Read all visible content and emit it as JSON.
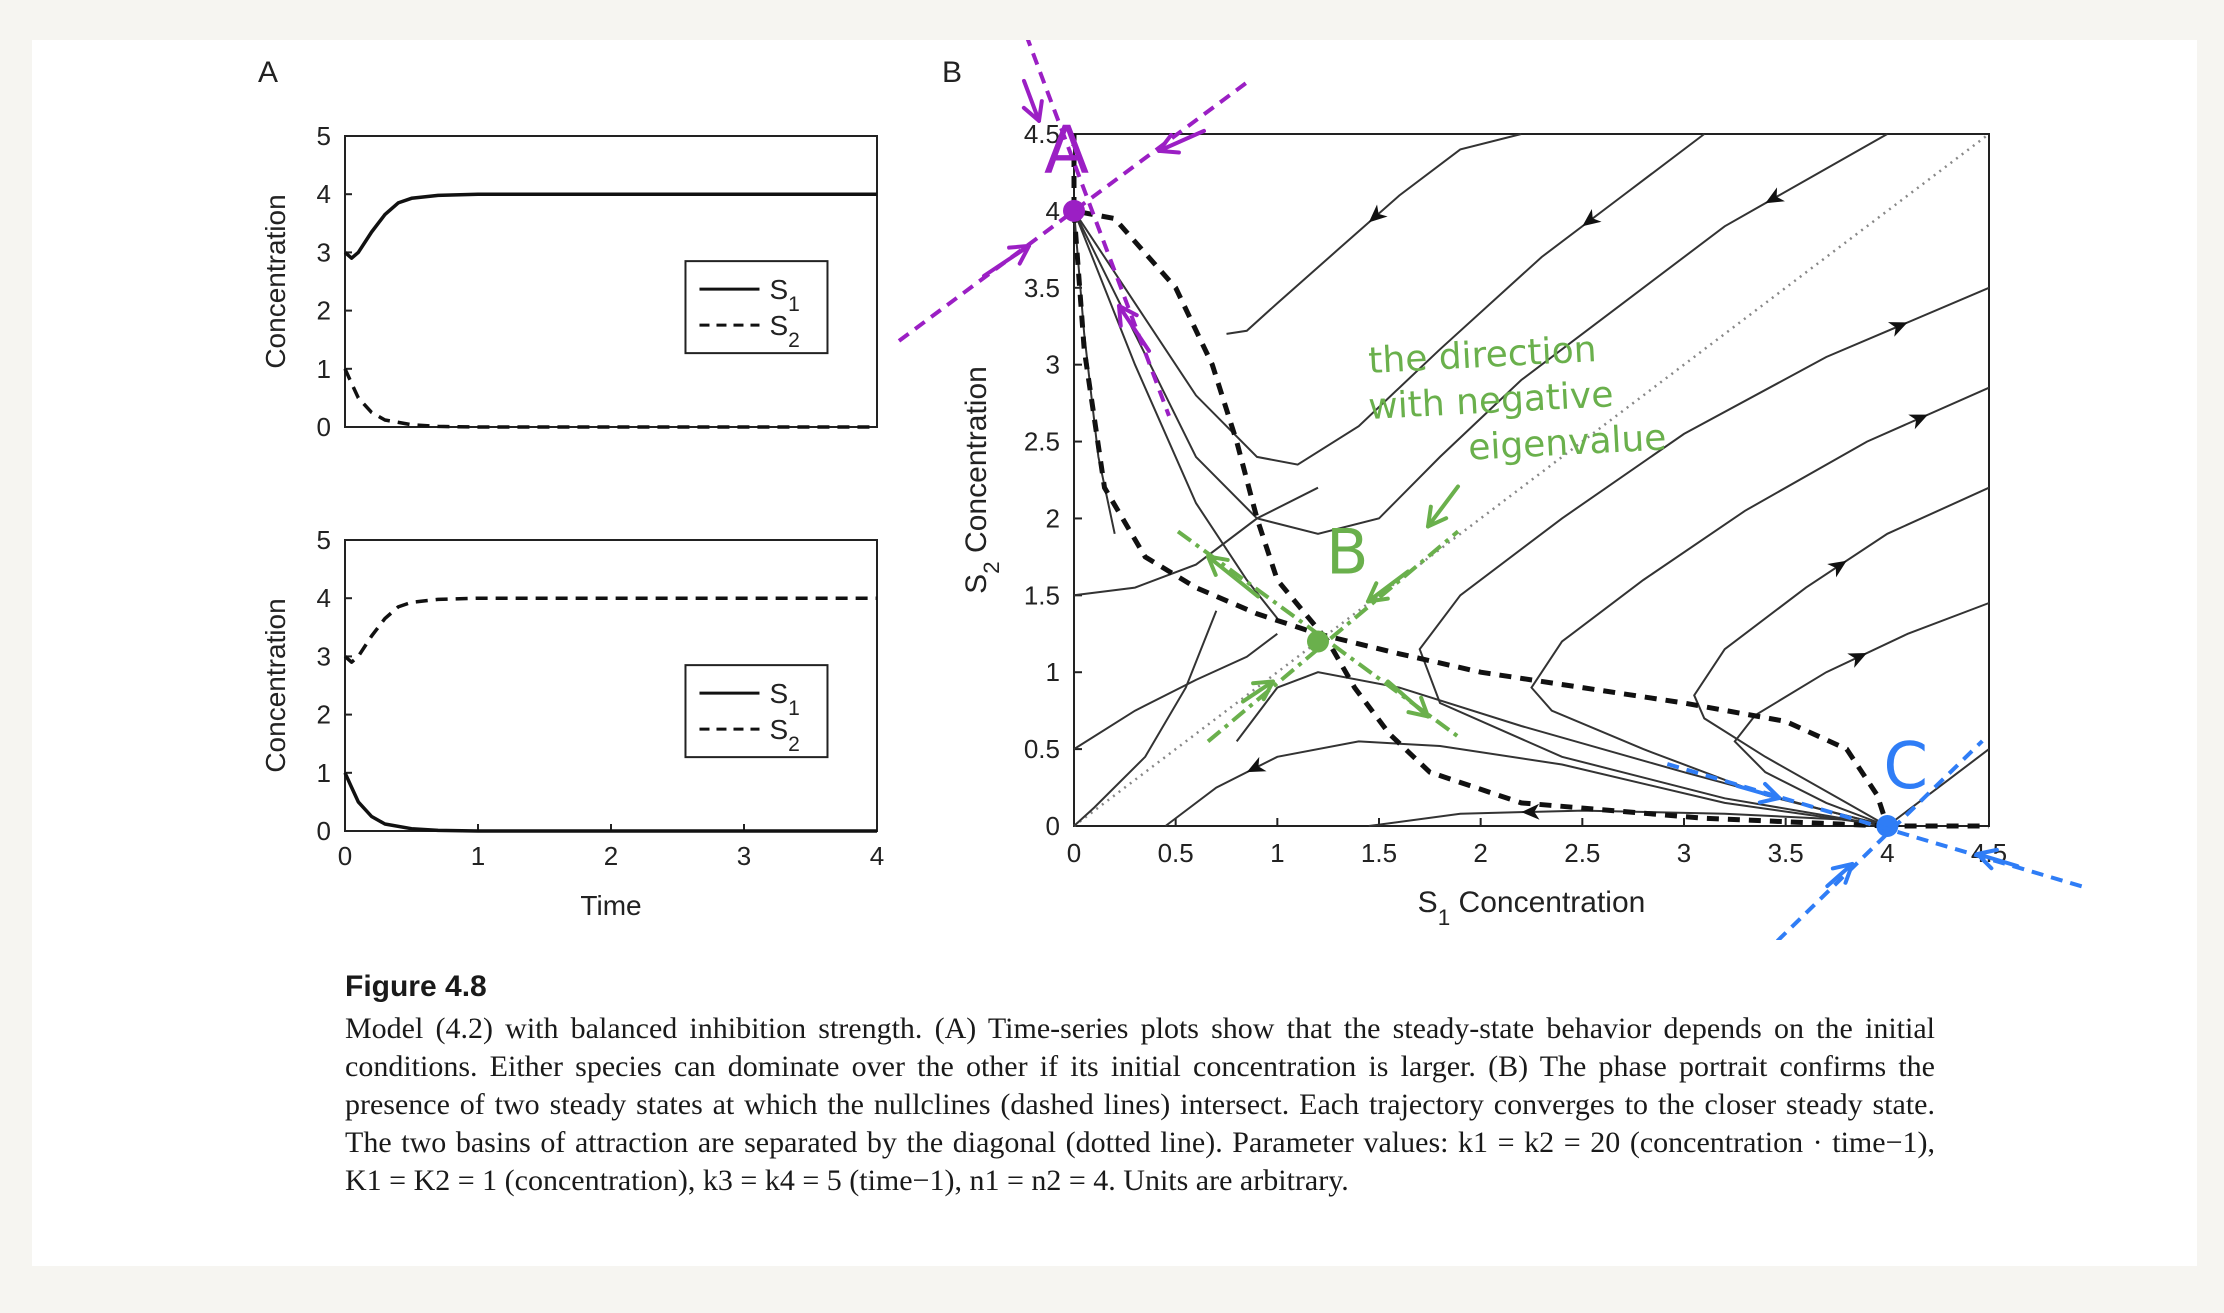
{
  "panel_a": {
    "label": "A",
    "chart_data": [
      {
        "type": "line",
        "ylabel": "Concentration",
        "xlabel": "",
        "xlim": [
          0,
          4
        ],
        "ylim": [
          0,
          5
        ],
        "yticks": [
          "0",
          "1",
          "2",
          "3",
          "4",
          "5"
        ],
        "legend": [
          "S1",
          "S2"
        ],
        "legend_placement": "center-right",
        "series": [
          {
            "name": "S1",
            "style": "solid",
            "x": [
              0,
              0.05,
              0.1,
              0.2,
              0.3,
              0.4,
              0.5,
              0.7,
              1.0,
              1.5,
              4
            ],
            "y": [
              3.0,
              2.9,
              3.0,
              3.35,
              3.65,
              3.85,
              3.93,
              3.98,
              4.0,
              4.0,
              4.0
            ]
          },
          {
            "name": "S2",
            "style": "dashed",
            "x": [
              0,
              0.05,
              0.1,
              0.2,
              0.3,
              0.5,
              0.7,
              1.0,
              4
            ],
            "y": [
              1.0,
              0.75,
              0.5,
              0.25,
              0.12,
              0.04,
              0.01,
              0.0,
              0.0
            ]
          }
        ]
      },
      {
        "type": "line",
        "ylabel": "Concentration",
        "xlabel": "Time",
        "xlim": [
          0,
          4
        ],
        "ylim": [
          0,
          5
        ],
        "xticks": [
          "0",
          "1",
          "2",
          "3",
          "4"
        ],
        "yticks": [
          "0",
          "1",
          "2",
          "3",
          "4",
          "5"
        ],
        "legend": [
          "S1",
          "S2"
        ],
        "legend_placement": "center-right",
        "series": [
          {
            "name": "S1",
            "style": "solid",
            "x": [
              0,
              0.05,
              0.1,
              0.2,
              0.3,
              0.5,
              0.7,
              1.0,
              4
            ],
            "y": [
              1.0,
              0.75,
              0.5,
              0.25,
              0.12,
              0.04,
              0.01,
              0.0,
              0.0
            ]
          },
          {
            "name": "S2",
            "style": "dashed",
            "x": [
              0,
              0.05,
              0.1,
              0.2,
              0.3,
              0.4,
              0.5,
              0.7,
              1.0,
              1.5,
              4
            ],
            "y": [
              3.0,
              2.9,
              3.0,
              3.35,
              3.65,
              3.85,
              3.93,
              3.98,
              4.0,
              4.0,
              4.0
            ]
          }
        ]
      }
    ]
  },
  "panel_b": {
    "label": "B",
    "chart_data": {
      "type": "line",
      "xlabel": "S1 Concentration",
      "ylabel": "S2 Concentration",
      "xlim": [
        0,
        4.5
      ],
      "ylim": [
        0,
        4.5
      ],
      "xticks": [
        "0",
        "0.5",
        "1",
        "1.5",
        "2",
        "2.5",
        "3",
        "3.5",
        "4",
        "4.5"
      ],
      "yticks": [
        "0",
        "0.5",
        "1",
        "1.5",
        "2",
        "2.5",
        "3",
        "3.5",
        "4",
        "4.5"
      ],
      "nullclines": [
        {
          "style": "dashed",
          "x": [
            0.0,
            0.05,
            0.15,
            0.35,
            0.6,
            0.9,
            1.2,
            1.6,
            2.0,
            2.5,
            3.0,
            3.5,
            3.8,
            3.95,
            4.0,
            4.5
          ],
          "y": [
            4.0,
            3.1,
            2.2,
            1.75,
            1.55,
            1.38,
            1.25,
            1.12,
            1.0,
            0.9,
            0.8,
            0.68,
            0.5,
            0.2,
            0.0,
            0.0
          ]
        },
        {
          "style": "dashed",
          "x": [
            0.0,
            0.0,
            0.0,
            0.2,
            0.5,
            0.68,
            0.8,
            0.9,
            1.0,
            1.25,
            1.38,
            1.55,
            1.75,
            2.2,
            3.1,
            4.0
          ],
          "y": [
            4.5,
            4.1,
            4.0,
            3.95,
            3.5,
            3.0,
            2.5,
            2.0,
            1.6,
            1.2,
            0.9,
            0.6,
            0.35,
            0.15,
            0.05,
            0.0
          ]
        }
      ],
      "diagonal": {
        "style": "dotted",
        "x": [
          0,
          4.5
        ],
        "y": [
          0,
          4.5
        ]
      },
      "trajectories": [
        {
          "x": [
            0.75,
            0.85,
            1.0,
            1.3,
            1.6,
            1.9,
            2.2
          ],
          "y": [
            3.2,
            3.22,
            3.4,
            3.75,
            4.1,
            4.4,
            4.5
          ],
          "arrow_at": 4
        },
        {
          "x": [
            0.0,
            0.3,
            0.6,
            0.9,
            1.1,
            1.4,
            1.8,
            2.3,
            2.7,
            3.1
          ],
          "y": [
            4.0,
            3.4,
            2.8,
            2.4,
            2.35,
            2.6,
            3.1,
            3.7,
            4.1,
            4.5
          ],
          "arrow_at": 8
        },
        {
          "x": [
            0.0,
            0.3,
            0.6,
            0.9,
            1.2,
            1.5,
            1.8,
            2.2,
            2.7,
            3.2,
            3.6,
            4.0
          ],
          "y": [
            4.0,
            3.2,
            2.4,
            2.0,
            1.9,
            2.0,
            2.4,
            2.9,
            3.4,
            3.9,
            4.2,
            4.5
          ],
          "arrow_at": 10
        },
        {
          "x": [
            0.0,
            0.3,
            0.6,
            0.85,
            1.0
          ],
          "y": [
            4.0,
            3.0,
            2.1,
            1.6,
            1.35
          ]
        },
        {
          "x": [
            0.0,
            0.05,
            0.12,
            0.2
          ],
          "y": [
            4.0,
            3.2,
            2.4,
            1.9
          ]
        },
        {
          "x": [
            0.0,
            0.1,
            0.35,
            0.55,
            0.7
          ],
          "y": [
            0.0,
            0.12,
            0.45,
            0.9,
            1.4
          ]
        },
        {
          "x": [
            0.0,
            0.3,
            0.6,
            0.85,
            1.0
          ],
          "y": [
            0.5,
            0.75,
            0.95,
            1.1,
            1.25
          ]
        },
        {
          "x": [
            0.45,
            0.7,
            1.0,
            1.4,
            1.8,
            2.4,
            3.2,
            4.0
          ],
          "y": [
            0.0,
            0.25,
            0.45,
            0.55,
            0.52,
            0.4,
            0.15,
            0.0
          ],
          "arrow_at": 2
        },
        {
          "x": [
            1.45,
            1.9,
            2.5,
            3.2,
            3.8,
            4.0
          ],
          "y": [
            0.0,
            0.08,
            0.1,
            0.08,
            0.04,
            0.0
          ],
          "arrow_at": 2
        },
        {
          "x": [
            0.0,
            0.3,
            0.6,
            0.9,
            1.2
          ],
          "y": [
            1.5,
            1.55,
            1.7,
            2.0,
            2.2
          ]
        },
        {
          "x": [
            0.8,
            1.0,
            1.2,
            1.6,
            2.2,
            3.0,
            3.7,
            4.0
          ],
          "y": [
            0.55,
            0.9,
            1.0,
            0.9,
            0.65,
            0.35,
            0.1,
            0.0
          ]
        },
        {
          "x": [
            4.5,
            3.7,
            3.0,
            2.4,
            1.9,
            1.7,
            1.8,
            2.4,
            3.2,
            4.0
          ],
          "y": [
            3.5,
            3.05,
            2.55,
            2.0,
            1.5,
            1.15,
            0.8,
            0.45,
            0.18,
            0.0
          ],
          "arrow_at": 1
        },
        {
          "x": [
            4.5,
            3.9,
            3.3,
            2.8,
            2.4,
            2.25,
            2.35,
            2.8,
            3.4,
            4.0
          ],
          "y": [
            2.85,
            2.5,
            2.05,
            1.6,
            1.2,
            0.9,
            0.75,
            0.5,
            0.2,
            0.0
          ],
          "arrow_at": 1
        },
        {
          "x": [
            4.5,
            4.0,
            3.6,
            3.2,
            3.05,
            3.1,
            3.4,
            3.8,
            4.0
          ],
          "y": [
            2.2,
            1.9,
            1.55,
            1.15,
            0.85,
            0.7,
            0.45,
            0.15,
            0.0
          ],
          "arrow_at": 2
        },
        {
          "x": [
            4.5,
            4.1,
            3.7,
            3.35,
            3.25,
            3.4,
            3.7,
            4.0
          ],
          "y": [
            1.45,
            1.25,
            1.0,
            0.72,
            0.55,
            0.35,
            0.15,
            0.0
          ],
          "arrow_at": 2
        },
        {
          "x": [
            4.5,
            4.3,
            4.1,
            4.0
          ],
          "y": [
            0.5,
            0.3,
            0.1,
            0.0
          ]
        }
      ],
      "steady_states": [
        {
          "x": 0,
          "y": 4,
          "color": "#9b1fc4"
        },
        {
          "x": 1.2,
          "y": 1.2,
          "color": "#6ab04c"
        },
        {
          "x": 4,
          "y": 0,
          "color": "#2f7df6"
        }
      ]
    }
  },
  "annotations": {
    "label_a": "A",
    "label_b": "B",
    "label_c": "C",
    "note": [
      "the direction",
      "with negative",
      "eigenvalue"
    ],
    "colors": {
      "purple": "#9b1fc4",
      "green": "#6ab04c",
      "blue": "#2f7df6"
    }
  },
  "caption": {
    "title": "Figure 4.8",
    "body": "Model (4.2) with balanced inhibition strength. (A) Time-series plots show that the steady-state behavior depends on the initial conditions. Either species can dominate over the other if its initial concentration is larger. (B) The phase portrait confirms the presence of two steady states at which the nullclines (dashed lines) intersect. Each trajectory converges to the closer steady state. The two basins of attraction are separated by the diagonal (dotted line). Parameter values: k1 = k2 = 20 (concentration · time−1), K1 = K2 = 1 (concentration), k3 = k4 = 5 (time−1), n1 = n2 = 4. Units are arbitrary."
  }
}
